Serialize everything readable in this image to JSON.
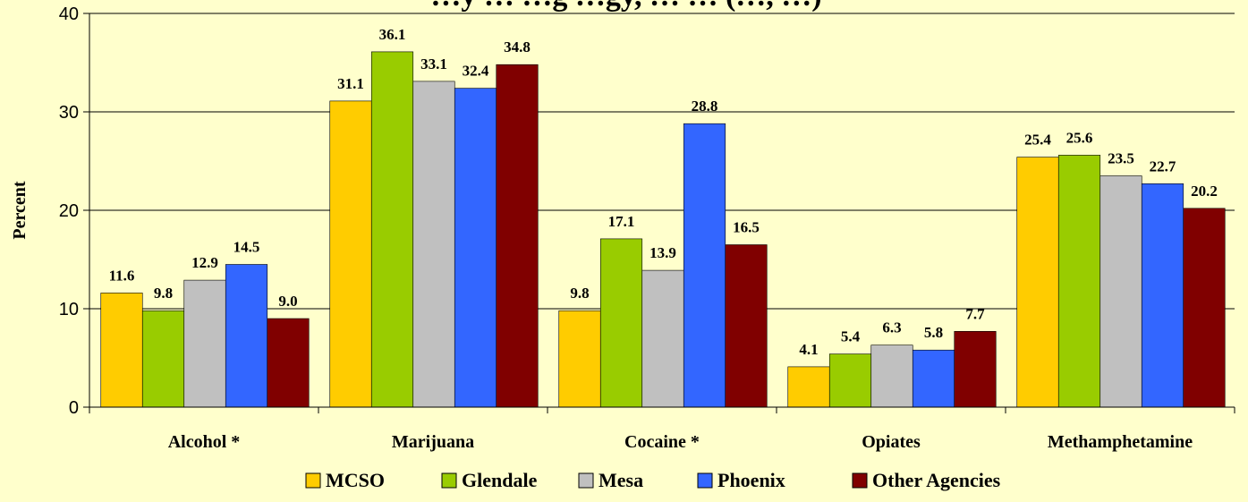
{
  "chart_data": {
    "type": "bar",
    "title": "…y … …g …gy, … … (…, …)",
    "ylabel": "Percent",
    "xlabel": "",
    "ylim": [
      0,
      40
    ],
    "yticks": [
      0,
      10,
      20,
      30,
      40
    ],
    "grid": true,
    "legend_position": "bottom",
    "categories": [
      "Alcohol *",
      "Marijuana",
      "Cocaine *",
      "Opiates",
      "Methamphetamine"
    ],
    "series": [
      {
        "name": "MCSO",
        "color": "#FFCC00",
        "values": [
          11.6,
          31.1,
          9.8,
          4.1,
          25.4
        ]
      },
      {
        "name": "Glendale",
        "color": "#99CC00",
        "values": [
          9.8,
          36.1,
          17.1,
          5.4,
          25.6
        ]
      },
      {
        "name": "Mesa",
        "color": "#C0C0C0",
        "values": [
          12.9,
          33.1,
          13.9,
          6.3,
          23.5
        ]
      },
      {
        "name": "Phoenix",
        "color": "#3366FF",
        "values": [
          14.5,
          32.4,
          28.8,
          5.8,
          22.7
        ]
      },
      {
        "name": "Other Agencies",
        "color": "#800000",
        "values": [
          9.0,
          34.8,
          16.5,
          7.7,
          20.2
        ]
      }
    ],
    "data_labels": [
      [
        "11.6",
        "31.1",
        "9.8",
        "4.1",
        "25.4"
      ],
      [
        "9.8",
        "36.1",
        "17.1",
        "5.4",
        "25.6"
      ],
      [
        "12.9",
        "33.1",
        "13.9",
        "6.3",
        "23.5"
      ],
      [
        "14.5",
        "32.4",
        "28.8",
        "5.8",
        "22.7"
      ],
      [
        "9.0",
        "34.8",
        "16.5",
        "7.7",
        "20.2"
      ]
    ]
  }
}
